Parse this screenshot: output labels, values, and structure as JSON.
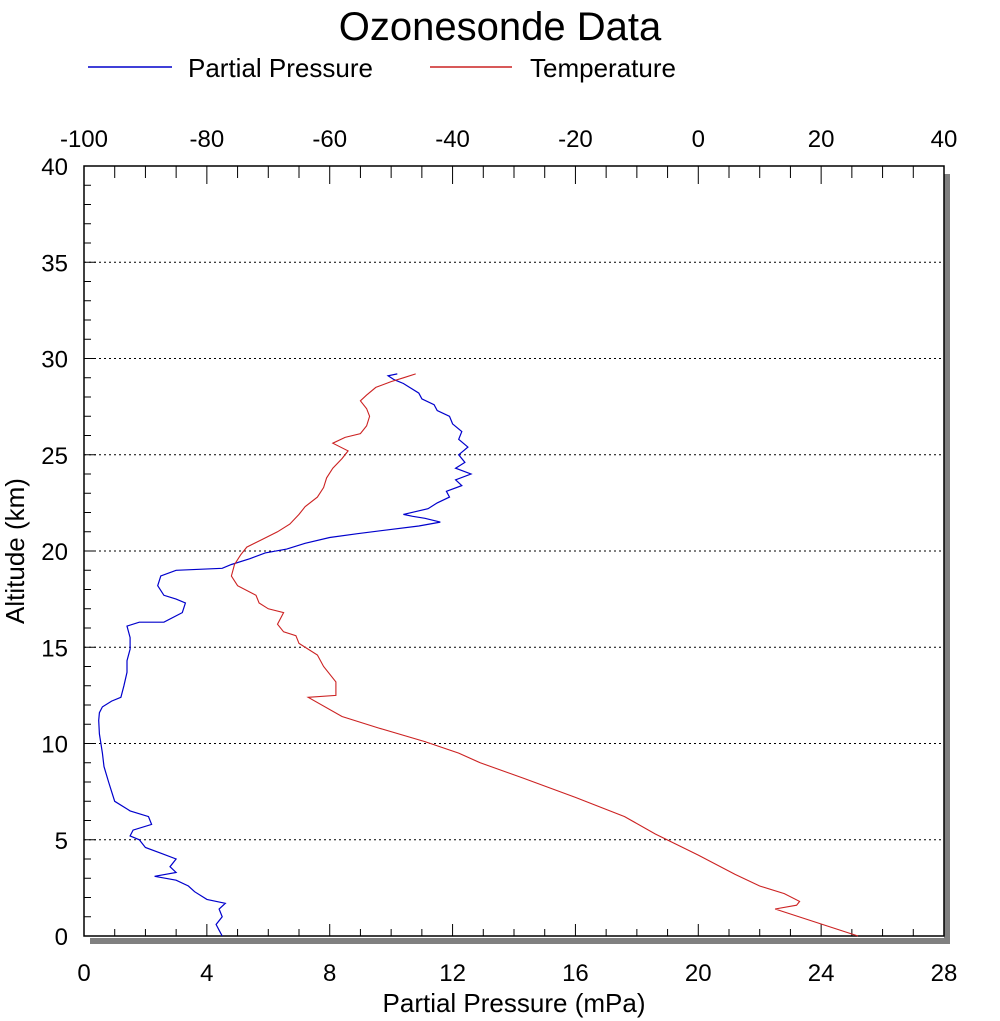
{
  "chart_data": {
    "type": "line",
    "title": "Ozonesonde Data",
    "xlabel": "Partial Pressure (mPa)",
    "ylabel": "Altitude (km)",
    "x_bottom_range": [
      0,
      28
    ],
    "x_bottom_ticks": [
      "0",
      "4",
      "8",
      "12",
      "16",
      "20",
      "24",
      "28"
    ],
    "x_top_range": [
      -100,
      40
    ],
    "x_top_ticks": [
      "-100",
      "-80",
      "-60",
      "-40",
      "-20",
      "0",
      "20",
      "40"
    ],
    "y_range": [
      0,
      40
    ],
    "y_ticks": [
      "0",
      "5",
      "10",
      "15",
      "20",
      "25",
      "30",
      "35",
      "40"
    ],
    "grid": "horizontal dotted lines at every 5 km",
    "legend_position": "top",
    "series": [
      {
        "name": "Partial Pressure",
        "axis": "bottom",
        "color": "#0000cc",
        "points": [
          [
            4.5,
            0
          ],
          [
            4.4,
            0.3
          ],
          [
            4.3,
            0.6
          ],
          [
            4.5,
            1.0
          ],
          [
            4.4,
            1.4
          ],
          [
            4.6,
            1.7
          ],
          [
            4.0,
            1.9
          ],
          [
            3.6,
            2.3
          ],
          [
            3.4,
            2.6
          ],
          [
            3.0,
            2.9
          ],
          [
            2.3,
            3.1
          ],
          [
            3.0,
            3.3
          ],
          [
            2.8,
            3.6
          ],
          [
            3.0,
            4.0
          ],
          [
            2.5,
            4.3
          ],
          [
            2.0,
            4.6
          ],
          [
            1.8,
            5.0
          ],
          [
            1.5,
            5.2
          ],
          [
            1.6,
            5.5
          ],
          [
            2.2,
            5.8
          ],
          [
            2.1,
            6.2
          ],
          [
            1.5,
            6.5
          ],
          [
            1.0,
            7.0
          ],
          [
            0.9,
            7.5
          ],
          [
            0.8,
            8.0
          ],
          [
            0.65,
            8.8
          ],
          [
            0.6,
            9.5
          ],
          [
            0.55,
            10.0
          ],
          [
            0.5,
            10.5
          ],
          [
            0.48,
            11.2
          ],
          [
            0.5,
            11.6
          ],
          [
            0.6,
            11.9
          ],
          [
            0.9,
            12.2
          ],
          [
            1.2,
            12.4
          ],
          [
            1.3,
            13.0
          ],
          [
            1.4,
            13.7
          ],
          [
            1.4,
            14.3
          ],
          [
            1.5,
            14.9
          ],
          [
            1.5,
            15.5
          ],
          [
            1.4,
            16.1
          ],
          [
            1.8,
            16.3
          ],
          [
            2.6,
            16.3
          ],
          [
            3.2,
            16.8
          ],
          [
            3.3,
            17.3
          ],
          [
            3.0,
            17.5
          ],
          [
            2.6,
            17.7
          ],
          [
            2.4,
            18.2
          ],
          [
            2.5,
            18.7
          ],
          [
            3.0,
            19.0
          ],
          [
            4.5,
            19.1
          ],
          [
            4.8,
            19.3
          ],
          [
            5.4,
            19.6
          ],
          [
            5.9,
            19.9
          ],
          [
            6.6,
            20.1
          ],
          [
            7.2,
            20.4
          ],
          [
            8.0,
            20.7
          ],
          [
            8.9,
            20.9
          ],
          [
            9.9,
            21.1
          ],
          [
            10.9,
            21.3
          ],
          [
            11.6,
            21.5
          ],
          [
            11.1,
            21.7
          ],
          [
            10.7,
            21.8
          ],
          [
            10.4,
            21.9
          ],
          [
            11.2,
            22.2
          ],
          [
            11.5,
            22.5
          ],
          [
            11.9,
            22.8
          ],
          [
            11.8,
            23.1
          ],
          [
            12.3,
            23.4
          ],
          [
            12.1,
            23.7
          ],
          [
            12.6,
            24.0
          ],
          [
            12.1,
            24.3
          ],
          [
            12.4,
            24.6
          ],
          [
            12.2,
            25.0
          ],
          [
            12.5,
            25.4
          ],
          [
            12.2,
            25.8
          ],
          [
            12.3,
            26.2
          ],
          [
            12.0,
            26.6
          ],
          [
            11.9,
            27.0
          ],
          [
            11.5,
            27.3
          ],
          [
            11.4,
            27.6
          ],
          [
            11.0,
            27.9
          ],
          [
            10.9,
            28.2
          ],
          [
            10.6,
            28.5
          ],
          [
            10.4,
            28.7
          ],
          [
            10.1,
            28.9
          ],
          [
            9.9,
            29.1
          ],
          [
            10.2,
            29.2
          ]
        ]
      },
      {
        "name": "Temperature",
        "axis": "top",
        "color": "#cc2222",
        "points": [
          [
            25.2,
            0
          ],
          [
            22.5,
            1.4
          ],
          [
            23.2,
            1.6
          ],
          [
            23.3,
            1.8
          ],
          [
            22.8,
            2.2
          ],
          [
            22.0,
            2.6
          ],
          [
            21.2,
            3.2
          ],
          [
            20.0,
            4.2
          ],
          [
            18.6,
            5.3
          ],
          [
            17.6,
            6.2
          ],
          [
            16.0,
            7.2
          ],
          [
            14.3,
            8.2
          ],
          [
            12.9,
            9.0
          ],
          [
            12.2,
            9.5
          ],
          [
            11.1,
            10.1
          ],
          [
            9.6,
            10.8
          ],
          [
            8.4,
            11.4
          ],
          [
            7.3,
            12.4
          ],
          [
            8.2,
            12.5
          ],
          [
            8.2,
            13.2
          ],
          [
            7.8,
            14.0
          ],
          [
            7.6,
            14.6
          ],
          [
            7.0,
            15.2
          ],
          [
            6.9,
            15.6
          ],
          [
            6.5,
            15.8
          ],
          [
            6.3,
            16.2
          ],
          [
            6.5,
            16.8
          ],
          [
            6.0,
            17.0
          ],
          [
            5.7,
            17.3
          ],
          [
            5.6,
            17.7
          ],
          [
            5.0,
            18.2
          ],
          [
            4.8,
            18.7
          ],
          [
            4.9,
            19.3
          ],
          [
            5.1,
            19.8
          ],
          [
            5.3,
            20.2
          ],
          [
            5.8,
            20.6
          ],
          [
            6.3,
            21.0
          ],
          [
            6.7,
            21.4
          ],
          [
            7.0,
            21.9
          ],
          [
            7.2,
            22.3
          ],
          [
            7.6,
            22.8
          ],
          [
            7.8,
            23.3
          ],
          [
            7.9,
            23.8
          ],
          [
            8.1,
            24.3
          ],
          [
            8.4,
            24.8
          ],
          [
            8.6,
            25.2
          ],
          [
            8.1,
            25.6
          ],
          [
            8.5,
            25.9
          ],
          [
            9.0,
            26.1
          ],
          [
            9.2,
            26.5
          ],
          [
            9.3,
            27.0
          ],
          [
            9.2,
            27.4
          ],
          [
            9.0,
            27.8
          ],
          [
            9.2,
            28.1
          ],
          [
            9.5,
            28.5
          ],
          [
            10.0,
            28.8
          ],
          [
            10.4,
            29.0
          ],
          [
            10.8,
            29.2
          ]
        ]
      }
    ]
  }
}
